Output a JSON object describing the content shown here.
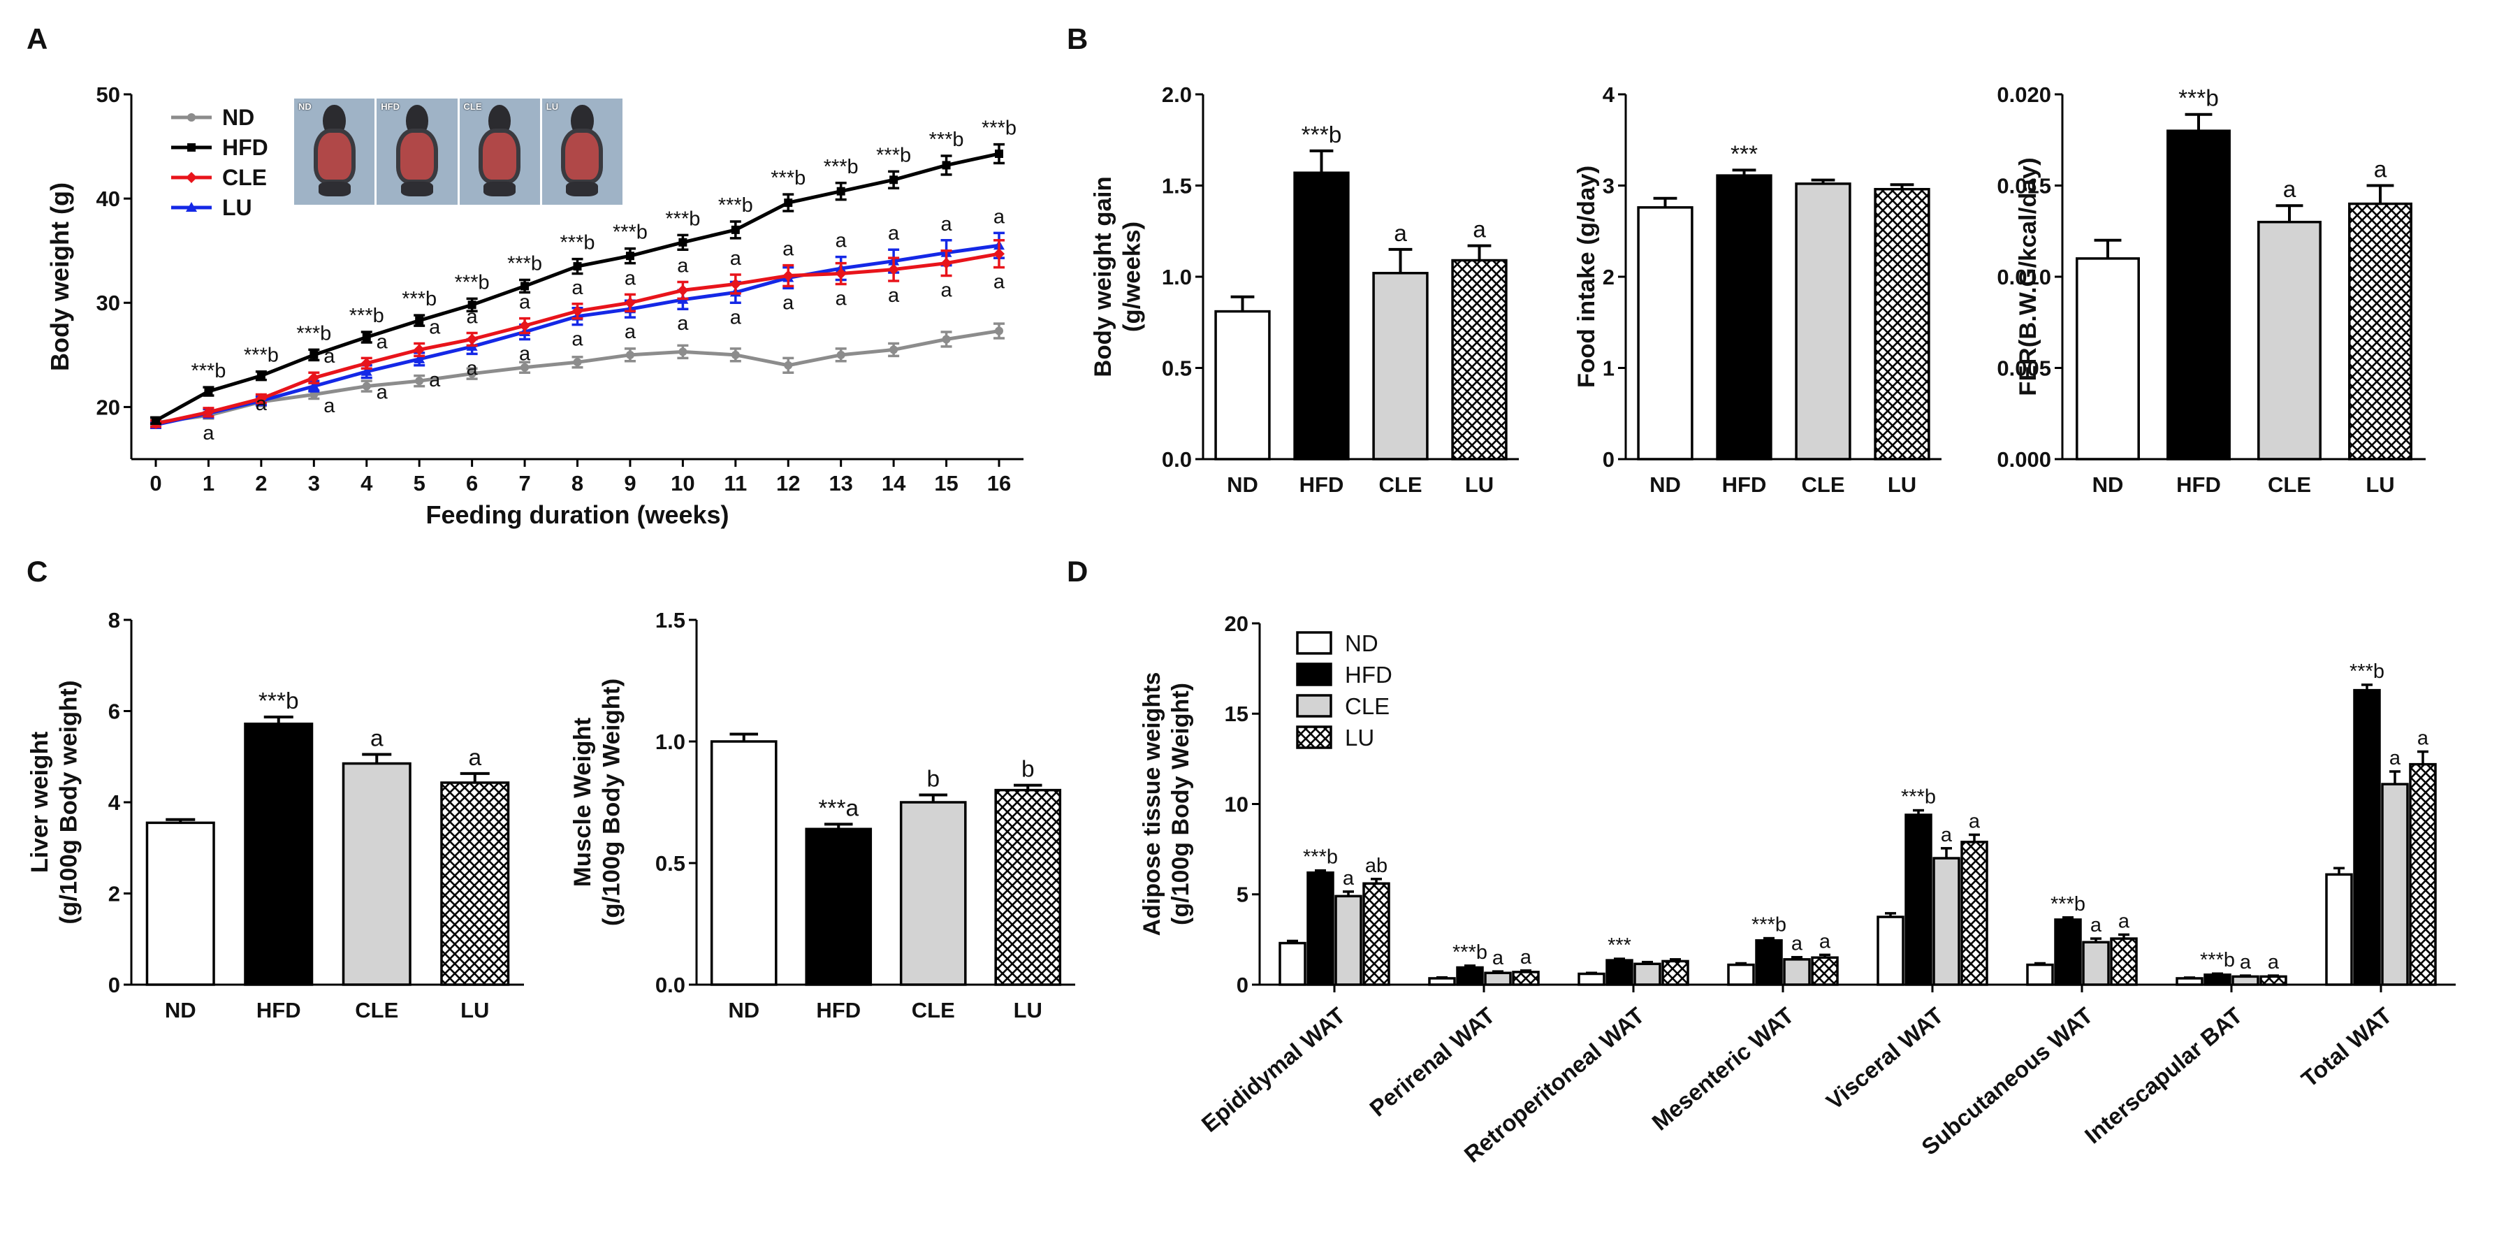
{
  "panel_labels": [
    "A",
    "B",
    "C",
    "D"
  ],
  "photos": [
    "ND",
    "HFD",
    "CLE",
    "LU"
  ],
  "colors": {
    "ND": "#8c8c8c",
    "HFD": "#000000",
    "CLE": "#e8141b",
    "LU": "#1428e6",
    "gray_bar": "#d3d3d3"
  },
  "chart_data": [
    {
      "id": "A",
      "type": "line",
      "title": "",
      "xlabel": "Feeding duration (weeks)",
      "ylabel": "Body weight (g)",
      "xlim": [
        0,
        16
      ],
      "ylim": [
        15,
        50
      ],
      "yticks": [
        20,
        30,
        40,
        50
      ],
      "x": [
        0,
        1,
        2,
        3,
        4,
        5,
        6,
        7,
        8,
        9,
        10,
        11,
        12,
        13,
        14,
        15,
        16
      ],
      "series": [
        {
          "name": "ND",
          "values": [
            18.5,
            19.2,
            20.5,
            21.2,
            22.0,
            22.5,
            23.2,
            23.8,
            24.3,
            25.0,
            25.3,
            25.0,
            24.0,
            25.0,
            25.5,
            26.5,
            27.3
          ],
          "err": [
            0.3,
            0.3,
            0.4,
            0.4,
            0.5,
            0.5,
            0.5,
            0.5,
            0.5,
            0.6,
            0.6,
            0.6,
            0.7,
            0.6,
            0.6,
            0.7,
            0.7
          ]
        },
        {
          "name": "HFD",
          "values": [
            18.7,
            21.5,
            23.0,
            25.0,
            26.7,
            28.3,
            29.8,
            31.6,
            33.5,
            34.5,
            35.8,
            37.0,
            39.6,
            40.7,
            41.8,
            43.2,
            44.3
          ],
          "err": [
            0.3,
            0.4,
            0.4,
            0.5,
            0.5,
            0.5,
            0.6,
            0.6,
            0.7,
            0.7,
            0.7,
            0.8,
            0.8,
            0.8,
            0.8,
            0.9,
            0.9
          ]
        },
        {
          "name": "CLE",
          "values": [
            18.4,
            19.5,
            20.8,
            22.8,
            24.2,
            25.5,
            26.5,
            27.8,
            29.2,
            30.0,
            31.2,
            31.8,
            32.6,
            32.8,
            33.2,
            33.8,
            34.7
          ],
          "err": [
            0.3,
            0.4,
            0.4,
            0.5,
            0.5,
            0.6,
            0.6,
            0.7,
            0.7,
            0.8,
            0.8,
            0.9,
            1.0,
            1.0,
            1.1,
            1.2,
            1.3
          ]
        },
        {
          "name": "LU",
          "values": [
            18.3,
            19.4,
            20.6,
            22.0,
            23.4,
            24.6,
            25.8,
            27.2,
            28.7,
            29.4,
            30.3,
            31.0,
            32.4,
            33.3,
            34.0,
            34.8,
            35.5
          ],
          "err": [
            0.3,
            0.4,
            0.4,
            0.5,
            0.6,
            0.6,
            0.7,
            0.7,
            0.8,
            0.8,
            0.9,
            1.0,
            1.0,
            1.1,
            1.1,
            1.2,
            1.2
          ]
        }
      ],
      "annotations": [
        "***b",
        "***b",
        "***b",
        "***b",
        "***b",
        "***b",
        "***b",
        "***b",
        "***b",
        "***b",
        "***b",
        "***b",
        "***b",
        "***b",
        "***b",
        "***b"
      ],
      "sub_annotations": {
        "x": [
          1,
          2,
          3,
          3,
          4,
          4,
          5,
          5,
          6,
          6,
          7,
          7,
          8,
          8,
          9,
          9,
          10,
          10,
          11,
          11,
          12,
          12,
          13,
          13,
          14,
          14,
          15,
          15,
          16,
          16
        ],
        "text": [
          "a",
          "a",
          "a",
          "a",
          "a",
          "a",
          "a",
          "a",
          "a",
          "a",
          "a",
          "a",
          "a",
          "a",
          "a",
          "a",
          "a",
          "a",
          "a",
          "a",
          "a",
          "a",
          "a",
          "a",
          "a",
          "a",
          "a",
          "a",
          "a",
          "a"
        ]
      },
      "legend": [
        "ND",
        "HFD",
        "CLE",
        "LU"
      ]
    },
    {
      "id": "B1",
      "type": "bar",
      "title": "",
      "categories": [
        "ND",
        "HFD",
        "CLE",
        "LU"
      ],
      "values": [
        0.81,
        1.57,
        1.02,
        1.09
      ],
      "err": [
        0.08,
        0.12,
        0.13,
        0.08
      ],
      "labels": [
        "",
        "***b",
        "a",
        "a"
      ],
      "ylabel": "Body weight gain (g/weeks)",
      "ylim": [
        0,
        2.0
      ],
      "yticks": [
        "0.0",
        "0.5",
        "1.0",
        "1.5",
        "2.0"
      ]
    },
    {
      "id": "B2",
      "type": "bar",
      "title": "",
      "categories": [
        "ND",
        "HFD",
        "CLE",
        "LU"
      ],
      "values": [
        2.76,
        3.11,
        3.02,
        2.96
      ],
      "err": [
        0.1,
        0.06,
        0.04,
        0.05
      ],
      "labels": [
        "",
        "***",
        "",
        ""
      ],
      "ylabel": "Food intake (g/day)",
      "ylim": [
        0,
        4
      ],
      "yticks": [
        "0",
        "1",
        "2",
        "3",
        "4"
      ]
    },
    {
      "id": "B3",
      "type": "bar",
      "title": "",
      "categories": [
        "ND",
        "HFD",
        "CLE",
        "LU"
      ],
      "values": [
        0.011,
        0.018,
        0.013,
        0.014
      ],
      "err": [
        0.001,
        0.0009,
        0.0009,
        0.001
      ],
      "labels": [
        "",
        "***b",
        "a",
        "a"
      ],
      "ylabel": "FER(B.W.G/kcal/day)",
      "ylim": [
        0,
        0.02
      ],
      "yticks": [
        "0.000",
        "0.005",
        "0.010",
        "0.015",
        "0.020"
      ]
    },
    {
      "id": "C1",
      "type": "bar",
      "title": "",
      "categories": [
        "ND",
        "HFD",
        "CLE",
        "LU"
      ],
      "values": [
        3.55,
        5.72,
        4.85,
        4.43
      ],
      "err": [
        0.07,
        0.15,
        0.2,
        0.2
      ],
      "labels": [
        "",
        "***b",
        "a",
        "a"
      ],
      "ylabel": "Liver weight (g/100g Body weight)",
      "ylim": [
        0,
        8
      ],
      "yticks": [
        "0",
        "2",
        "4",
        "6",
        "8"
      ]
    },
    {
      "id": "C2",
      "type": "bar",
      "title": "",
      "categories": [
        "ND",
        "HFD",
        "CLE",
        "LU"
      ],
      "values": [
        1.0,
        0.64,
        0.75,
        0.8
      ],
      "err": [
        0.03,
        0.02,
        0.03,
        0.02
      ],
      "labels": [
        "",
        "***a",
        "b",
        "b"
      ],
      "ylabel": "Muscle Weight (g/100g Body Weight)",
      "ylim": [
        0,
        1.5
      ],
      "yticks": [
        "0.0",
        "0.5",
        "1.0",
        "1.5"
      ]
    },
    {
      "id": "D",
      "type": "bar",
      "title": "",
      "categories": [
        "Epididymal WAT",
        "Perirenal WAT",
        "Retroperitoneal WAT",
        "Mesenteric WAT",
        "Visceral WAT",
        "Subcutaneous WAT",
        "Interscapular BAT",
        "Total WAT"
      ],
      "series": [
        {
          "name": "ND",
          "values": [
            2.3,
            0.35,
            0.6,
            1.1,
            3.75,
            1.1,
            0.35,
            6.1
          ],
          "err": [
            0.12,
            0.05,
            0.05,
            0.08,
            0.2,
            0.08,
            0.04,
            0.35
          ]
        },
        {
          "name": "HFD",
          "values": [
            6.2,
            0.95,
            1.35,
            2.45,
            9.4,
            3.6,
            0.55,
            16.3
          ],
          "err": [
            0.12,
            0.1,
            0.08,
            0.12,
            0.25,
            0.12,
            0.06,
            0.3
          ]
        },
        {
          "name": "CLE",
          "values": [
            4.9,
            0.65,
            1.15,
            1.4,
            7.0,
            2.35,
            0.45,
            11.1
          ],
          "err": [
            0.25,
            0.08,
            0.1,
            0.12,
            0.55,
            0.2,
            0.05,
            0.7
          ]
        },
        {
          "name": "LU",
          "values": [
            5.6,
            0.7,
            1.3,
            1.5,
            7.9,
            2.55,
            0.45,
            12.2
          ],
          "err": [
            0.25,
            0.08,
            0.1,
            0.15,
            0.4,
            0.22,
            0.05,
            0.7
          ]
        }
      ],
      "labels": [
        [
          "",
          "***b",
          "a",
          "ab"
        ],
        [
          "",
          "***b",
          "a",
          "a"
        ],
        [
          "",
          "***",
          "",
          ""
        ],
        [
          "",
          "***b",
          "a",
          "a"
        ],
        [
          "",
          "***b",
          "a",
          "a"
        ],
        [
          "",
          "***b",
          "a",
          "a"
        ],
        [
          "",
          "***b",
          "a",
          "a"
        ],
        [
          "",
          "***b",
          "a",
          "a"
        ]
      ],
      "ylabel": "Adipose tissue weights (g/100g Body Weight)",
      "ylim": [
        0,
        20
      ],
      "yticks": [
        "0",
        "5",
        "10",
        "15",
        "20"
      ],
      "legend": [
        "ND",
        "HFD",
        "CLE",
        "LU"
      ]
    }
  ]
}
